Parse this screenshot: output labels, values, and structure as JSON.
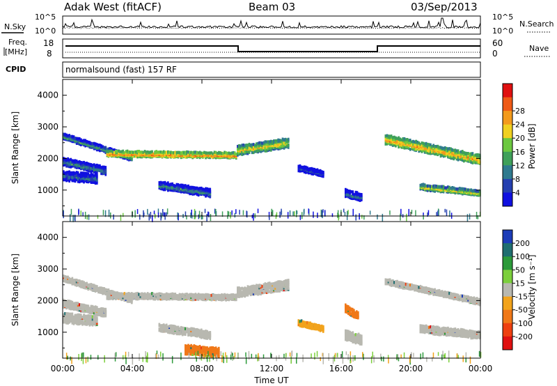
{
  "header": {
    "radar": "Adak West (fitACF)",
    "beam": "Beam 03",
    "date": "03/Sep/2013"
  },
  "strips": {
    "nsky": {
      "label": "N.Sky",
      "ticks": [
        "10^5",
        "10^0"
      ]
    },
    "nsearch": {
      "label": "N.Search",
      "ticks": [
        "10^5",
        "10^0"
      ]
    },
    "freq": {
      "label_line1": "Freq.",
      "label_line2": "[MHz]",
      "ticks": [
        "18",
        "8"
      ]
    },
    "nave": {
      "label": "Nave",
      "ticks": [
        "60",
        "0"
      ]
    },
    "cpid": {
      "label": "CPID",
      "value": "normalsound (fast) 157 RF"
    }
  },
  "chart_data": [
    {
      "type": "heatmap",
      "title": "",
      "xlabel": "Time UT",
      "ylabel": "Slant Range [km]",
      "x_ticks": [
        "00:00",
        "04:00",
        "08:00",
        "12:00",
        "16:00",
        "20:00",
        "00:00"
      ],
      "xlim_hours": [
        0,
        24
      ],
      "y_ticks": [
        1000,
        2000,
        3000,
        4000
      ],
      "ylim": [
        180,
        4500
      ],
      "colorbar": {
        "label": "Power [dB]",
        "ticks": [
          "4",
          "8",
          "12",
          "16",
          "20",
          "24",
          "28"
        ],
        "colors": [
          "#1010e0",
          "#2540b0",
          "#2f7a8f",
          "#3fa05a",
          "#6cc840",
          "#f0d020",
          "#f39a1c",
          "#ef5a16",
          "#e01010"
        ]
      },
      "echo_regions": [
        {
          "start_h": 0.0,
          "end_h": 4.0,
          "range_start_km": 2700,
          "range_end_km": 2000,
          "power_db": 14
        },
        {
          "start_h": 0.0,
          "end_h": 2.5,
          "range_start_km": 1900,
          "range_end_km": 1600,
          "power_db": 12
        },
        {
          "start_h": 0.0,
          "end_h": 2.0,
          "range_start_km": 1450,
          "range_end_km": 1350,
          "power_db": 10
        },
        {
          "start_h": 2.5,
          "end_h": 10.0,
          "range_start_km": 2150,
          "range_end_km": 2100,
          "power_db": 24
        },
        {
          "start_h": 5.5,
          "end_h": 8.5,
          "range_start_km": 1150,
          "range_end_km": 900,
          "power_db": 12
        },
        {
          "start_h": 10.0,
          "end_h": 13.0,
          "range_start_km": 2250,
          "range_end_km": 2500,
          "power_db": 20
        },
        {
          "start_h": 13.5,
          "end_h": 15.0,
          "range_start_km": 1700,
          "range_end_km": 1500,
          "power_db": 8
        },
        {
          "start_h": 16.2,
          "end_h": 17.2,
          "range_start_km": 900,
          "range_end_km": 750,
          "power_db": 10
        },
        {
          "start_h": 18.5,
          "end_h": 24.0,
          "range_start_km": 2600,
          "range_end_km": 1950,
          "power_db": 22
        },
        {
          "start_h": 20.5,
          "end_h": 24.0,
          "range_start_km": 1100,
          "range_end_km": 900,
          "power_db": 20
        }
      ]
    },
    {
      "type": "heatmap",
      "title": "",
      "xlabel": "Time UT",
      "ylabel": "Slant Range [km]",
      "x_ticks": [
        "00:00",
        "04:00",
        "08:00",
        "12:00",
        "16:00",
        "20:00",
        "00:00"
      ],
      "xlim_hours": [
        0,
        24
      ],
      "y_ticks": [
        1000,
        2000,
        3000,
        4000
      ],
      "ylim": [
        180,
        4500
      ],
      "colorbar": {
        "label": "Velocity [m s⁻¹]",
        "ticks": [
          "200",
          "100",
          "50",
          "15",
          "-15",
          "-50",
          "-100",
          "-200"
        ],
        "colors": [
          "#1c3cb8",
          "#1f6e70",
          "#2c9a3a",
          "#7ccf3c",
          "#b8b8b0",
          "#f2a31c",
          "#f07818",
          "#ee4010",
          "#e01010"
        ]
      },
      "echo_regions": [
        {
          "start_h": 0.0,
          "end_h": 4.0,
          "range_start_km": 2700,
          "range_end_km": 2000,
          "velocity_ms": 0
        },
        {
          "start_h": 0.0,
          "end_h": 2.5,
          "range_start_km": 1900,
          "range_end_km": 1600,
          "velocity_ms": 0
        },
        {
          "start_h": 0.0,
          "end_h": 2.0,
          "range_start_km": 1450,
          "range_end_km": 1350,
          "velocity_ms": 0
        },
        {
          "start_h": 2.5,
          "end_h": 10.0,
          "range_start_km": 2150,
          "range_end_km": 2100,
          "velocity_ms": 0
        },
        {
          "start_h": 5.5,
          "end_h": 8.5,
          "range_start_km": 1150,
          "range_end_km": 900,
          "velocity_ms": 0
        },
        {
          "start_h": 10.0,
          "end_h": 13.0,
          "range_start_km": 2250,
          "range_end_km": 2500,
          "velocity_ms": 0
        },
        {
          "start_h": 13.5,
          "end_h": 15.0,
          "range_start_km": 1300,
          "range_end_km": 1100,
          "velocity_ms": -40
        },
        {
          "start_h": 16.2,
          "end_h": 17.0,
          "range_start_km": 1750,
          "range_end_km": 1500,
          "velocity_ms": -70
        },
        {
          "start_h": 16.2,
          "end_h": 17.2,
          "range_start_km": 900,
          "range_end_km": 750,
          "velocity_ms": 0
        },
        {
          "start_h": 18.5,
          "end_h": 24.0,
          "range_start_km": 2600,
          "range_end_km": 1950,
          "velocity_ms": 0
        },
        {
          "start_h": 20.5,
          "end_h": 24.0,
          "range_start_km": 1100,
          "range_end_km": 900,
          "velocity_ms": 0
        },
        {
          "start_h": 7.0,
          "end_h": 9.0,
          "range_start_km": 450,
          "range_end_km": 350,
          "velocity_ms": -60
        }
      ]
    }
  ]
}
